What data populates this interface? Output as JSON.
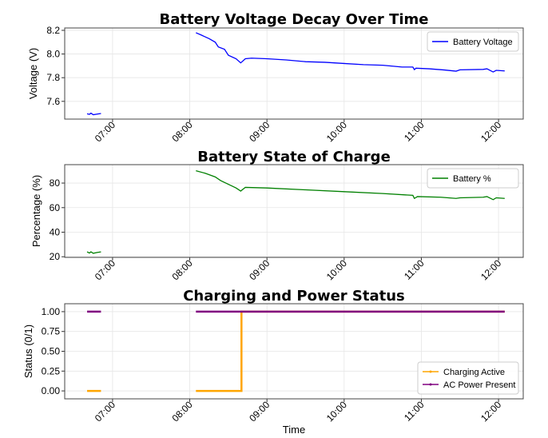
{
  "chart_data": [
    {
      "type": "line",
      "title": "Battery Voltage Decay Over Time",
      "xlabel": "",
      "ylabel": "Voltage (V)",
      "xlim": [
        6.38,
        12.32
      ],
      "ylim": [
        7.45,
        8.22
      ],
      "yticks": [
        7.6,
        7.8,
        8.0,
        8.2
      ],
      "ytick_labels": [
        "7.6",
        "7.8",
        "8.0",
        "8.2"
      ],
      "xticks": [
        7,
        8,
        9,
        10,
        11,
        12
      ],
      "xtick_labels": [
        "07:00",
        "08:00",
        "09:00",
        "10:00",
        "11:00",
        "12:00"
      ],
      "grid": true,
      "legend": "top-right",
      "series": [
        {
          "name": "Battery Voltage",
          "color": "#0000ff",
          "marker": false,
          "segments": [
            [
              [
                6.67,
                7.495
              ],
              [
                6.7,
                7.49
              ],
              [
                6.72,
                7.5
              ],
              [
                6.75,
                7.487
              ],
              [
                6.8,
                7.492
              ],
              [
                6.85,
                7.497
              ]
            ],
            [
              [
                8.08,
                8.18
              ],
              [
                8.15,
                8.16
              ],
              [
                8.25,
                8.13
              ],
              [
                8.33,
                8.1
              ],
              [
                8.37,
                8.06
              ],
              [
                8.45,
                8.04
              ],
              [
                8.5,
                7.99
              ],
              [
                8.6,
                7.96
              ],
              [
                8.66,
                7.925
              ],
              [
                8.72,
                7.96
              ],
              [
                8.8,
                7.965
              ],
              [
                9.0,
                7.96
              ],
              [
                9.25,
                7.95
              ],
              [
                9.5,
                7.935
              ],
              [
                9.75,
                7.93
              ],
              [
                10.0,
                7.92
              ],
              [
                10.25,
                7.91
              ],
              [
                10.5,
                7.905
              ],
              [
                10.75,
                7.89
              ],
              [
                10.89,
                7.89
              ],
              [
                10.91,
                7.868
              ],
              [
                10.93,
                7.88
              ],
              [
                11.1,
                7.875
              ],
              [
                11.3,
                7.865
              ],
              [
                11.45,
                7.855
              ],
              [
                11.5,
                7.866
              ],
              [
                11.8,
                7.87
              ],
              [
                11.85,
                7.875
              ],
              [
                11.93,
                7.848
              ],
              [
                11.97,
                7.862
              ],
              [
                12.08,
                7.857
              ]
            ]
          ]
        }
      ]
    },
    {
      "type": "line",
      "title": "Battery State of Charge",
      "xlabel": "",
      "ylabel": "Percentage (%)",
      "xlim": [
        6.38,
        12.32
      ],
      "ylim": [
        19.5,
        95
      ],
      "yticks": [
        20,
        40,
        60,
        80
      ],
      "ytick_labels": [
        "20",
        "40",
        "60",
        "80"
      ],
      "xticks": [
        7,
        8,
        9,
        10,
        11,
        12
      ],
      "xtick_labels": [
        "07:00",
        "08:00",
        "09:00",
        "10:00",
        "11:00",
        "12:00"
      ],
      "grid": true,
      "legend": "top-right",
      "series": [
        {
          "name": "Battery %",
          "color": "#008000",
          "marker": false,
          "segments": [
            [
              [
                6.67,
                24
              ],
              [
                6.7,
                23
              ],
              [
                6.72,
                24
              ],
              [
                6.75,
                22.8
              ],
              [
                6.8,
                23.5
              ],
              [
                6.85,
                24
              ]
            ],
            [
              [
                8.08,
                90
              ],
              [
                8.2,
                88
              ],
              [
                8.33,
                85
              ],
              [
                8.4,
                82
              ],
              [
                8.5,
                79
              ],
              [
                8.6,
                76
              ],
              [
                8.66,
                73.5
              ],
              [
                8.72,
                76.5
              ],
              [
                9.0,
                76
              ],
              [
                9.5,
                74.5
              ],
              [
                10.0,
                73
              ],
              [
                10.5,
                71.5
              ],
              [
                10.89,
                70
              ],
              [
                10.91,
                67.5
              ],
              [
                10.95,
                69
              ],
              [
                11.25,
                68.5
              ],
              [
                11.45,
                67.5
              ],
              [
                11.5,
                68
              ],
              [
                11.8,
                68.5
              ],
              [
                11.85,
                69
              ],
              [
                11.93,
                66.5
              ],
              [
                11.97,
                68
              ],
              [
                12.08,
                67.5
              ]
            ]
          ]
        }
      ]
    },
    {
      "type": "line",
      "title": "Charging and Power Status",
      "xlabel": "Time",
      "ylabel": "Status (0/1)",
      "xlim": [
        6.38,
        12.32
      ],
      "ylim": [
        -0.1,
        1.1
      ],
      "yticks": [
        0,
        0.25,
        0.5,
        0.75,
        1.0
      ],
      "ytick_labels": [
        "0.00",
        "0.25",
        "0.50",
        "0.75",
        "1.00"
      ],
      "xticks": [
        7,
        8,
        9,
        10,
        11,
        12
      ],
      "xtick_labels": [
        "07:00",
        "08:00",
        "09:00",
        "10:00",
        "11:00",
        "12:00"
      ],
      "grid": true,
      "legend": "bottom-right",
      "series": [
        {
          "name": "Charging Active",
          "color": "#ffa500",
          "marker": true,
          "segments": [
            [
              [
                6.67,
                0
              ],
              [
                6.85,
                0
              ]
            ],
            [
              [
                8.08,
                0
              ],
              [
                8.67,
                0
              ],
              [
                8.67,
                1
              ],
              [
                12.08,
                1
              ]
            ]
          ]
        },
        {
          "name": "AC Power Present",
          "color": "#800080",
          "marker": true,
          "segments": [
            [
              [
                6.67,
                1
              ],
              [
                6.85,
                1
              ]
            ],
            [
              [
                8.08,
                1
              ],
              [
                12.08,
                1
              ]
            ]
          ]
        }
      ]
    }
  ]
}
